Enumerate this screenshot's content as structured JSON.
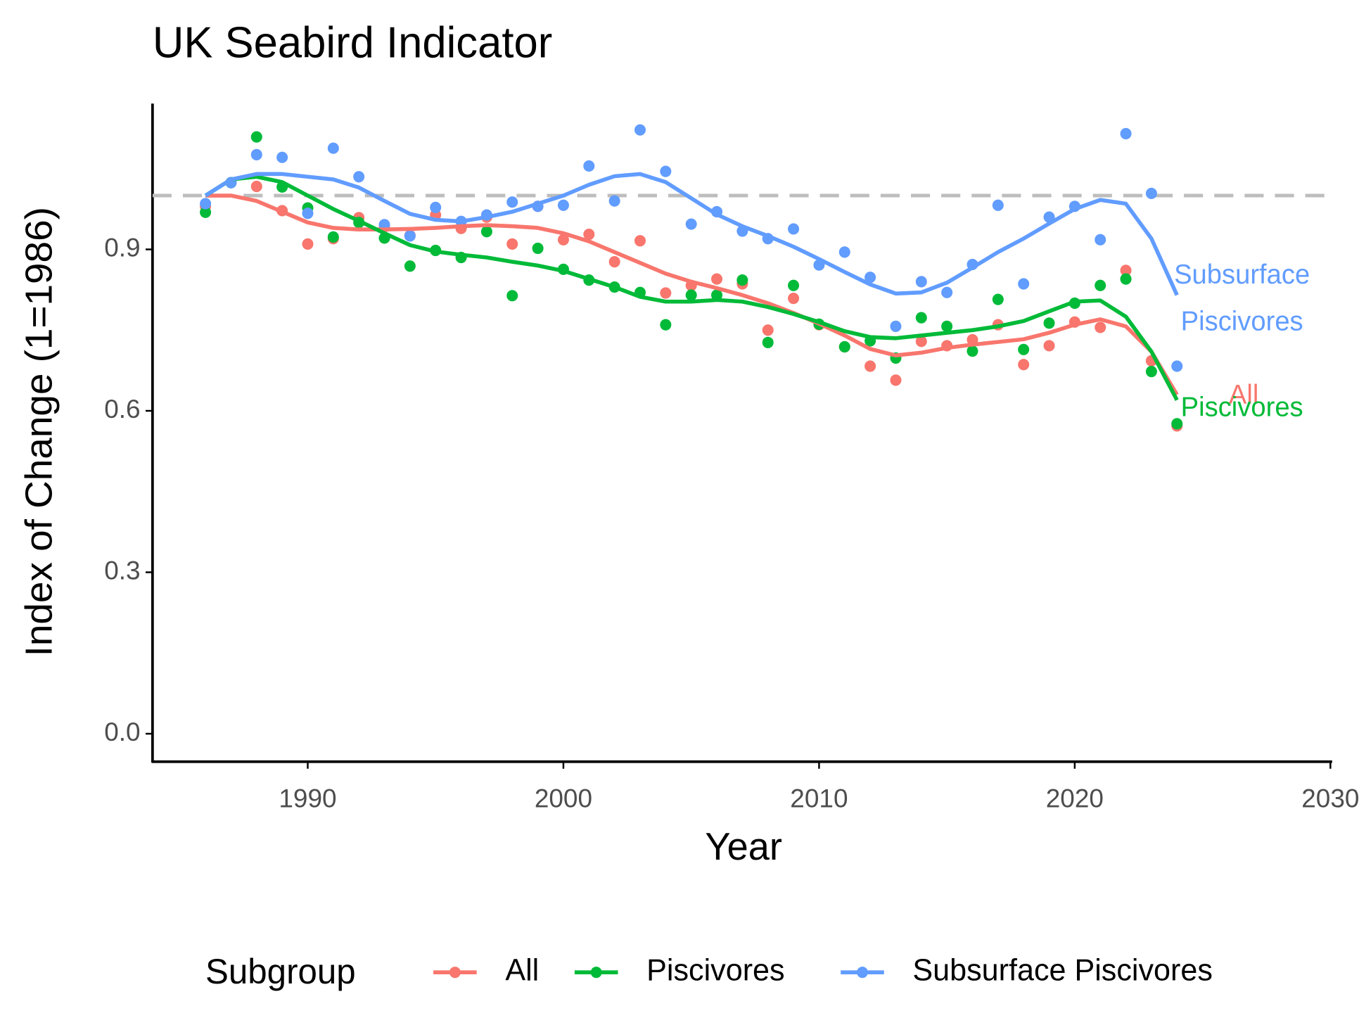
{
  "chart_data": {
    "type": "scatter",
    "title": "UK Seabird Indicator",
    "x_label": "Year",
    "y_label": "Index of Change (1=1986)",
    "legend_title": "Subgroup",
    "x": [
      1986,
      1987,
      1988,
      1989,
      1990,
      1991,
      1992,
      1993,
      1994,
      1995,
      1996,
      1997,
      1998,
      1999,
      2000,
      2001,
      2002,
      2003,
      2004,
      2005,
      2006,
      2007,
      2008,
      2009,
      2010,
      2011,
      2012,
      2013,
      2014,
      2015,
      2016,
      2017,
      2018,
      2019,
      2020,
      2021,
      2022,
      2023,
      2024
    ],
    "xlim": [
      1983.93,
      2030
    ],
    "xticks": [
      1990,
      2000,
      2010,
      2020,
      2030
    ],
    "ylim": [
      -0.052,
      1.171
    ],
    "yticks": [
      {
        "value": 0,
        "label": "0.0"
      },
      0.3,
      0.6,
      0.9
    ],
    "reference_line": 1,
    "series": [
      {
        "name": "All",
        "color": "#F8766D",
        "end_label": [
          "All"
        ],
        "values": [
          0.98,
          1.024,
          1.017,
          0.972,
          0.91,
          0.92,
          0.959,
          0.942,
          0.926,
          0.964,
          0.939,
          0.96,
          0.91,
          0.98,
          0.918,
          0.928,
          0.877,
          0.916,
          0.819,
          0.833,
          0.845,
          0.836,
          0.75,
          0.809,
          0.76,
          0.719,
          0.683,
          0.657,
          0.729,
          0.721,
          0.732,
          0.76,
          0.686,
          0.721,
          0.765,
          0.755,
          0.861,
          0.693,
          0.572
        ],
        "trend": [
          1.0,
          1.0,
          0.99,
          0.97,
          0.95,
          0.94,
          0.937,
          0.937,
          0.938,
          0.94,
          0.943,
          0.945,
          0.943,
          0.94,
          0.93,
          0.915,
          0.895,
          0.875,
          0.855,
          0.84,
          0.828,
          0.815,
          0.8,
          0.782,
          0.762,
          0.74,
          0.715,
          0.703,
          0.708,
          0.717,
          0.723,
          0.728,
          0.733,
          0.745,
          0.76,
          0.77,
          0.757,
          0.71,
          0.63
        ]
      },
      {
        "name": "Piscivores",
        "color": "#00BA38",
        "end_label": [
          "Piscivores"
        ],
        "values": [
          0.969,
          1.024,
          1.109,
          1.016,
          0.977,
          0.923,
          0.95,
          0.921,
          0.869,
          0.898,
          0.885,
          0.933,
          0.814,
          0.902,
          0.863,
          0.843,
          0.83,
          0.82,
          0.76,
          0.815,
          0.815,
          0.843,
          0.727,
          0.833,
          0.761,
          0.719,
          0.73,
          0.698,
          0.773,
          0.757,
          0.711,
          0.807,
          0.714,
          0.763,
          0.8,
          0.833,
          0.845,
          0.673,
          0.576
        ],
        "trend": [
          1.0,
          1.03,
          1.035,
          1.025,
          1.0,
          0.975,
          0.953,
          0.93,
          0.908,
          0.896,
          0.89,
          0.885,
          0.877,
          0.87,
          0.86,
          0.845,
          0.83,
          0.812,
          0.803,
          0.803,
          0.806,
          0.803,
          0.793,
          0.78,
          0.765,
          0.748,
          0.737,
          0.735,
          0.74,
          0.745,
          0.75,
          0.757,
          0.767,
          0.785,
          0.803,
          0.805,
          0.775,
          0.71,
          0.62
        ]
      },
      {
        "name": "Subsurface Piscivores",
        "color": "#619CFF",
        "end_label": [
          "Subsurface",
          "Piscivores"
        ],
        "values": [
          0.985,
          1.024,
          1.076,
          1.071,
          0.967,
          1.088,
          1.035,
          0.946,
          0.925,
          0.978,
          0.952,
          0.964,
          0.988,
          0.98,
          0.982,
          1.055,
          0.99,
          1.122,
          1.045,
          0.947,
          0.97,
          0.934,
          0.92,
          0.938,
          0.871,
          0.895,
          0.848,
          0.757,
          0.84,
          0.82,
          0.872,
          0.982,
          0.836,
          0.96,
          0.98,
          0.918,
          1.115,
          1.004,
          0.683
        ],
        "trend": [
          1.0,
          1.03,
          1.04,
          1.04,
          1.035,
          1.03,
          1.015,
          0.99,
          0.966,
          0.955,
          0.952,
          0.96,
          0.97,
          0.985,
          1.0,
          1.02,
          1.036,
          1.04,
          1.025,
          0.995,
          0.965,
          0.943,
          0.925,
          0.905,
          0.882,
          0.858,
          0.835,
          0.818,
          0.82,
          0.838,
          0.866,
          0.895,
          0.92,
          0.948,
          0.975,
          0.992,
          0.985,
          0.92,
          0.815
        ]
      }
    ]
  }
}
